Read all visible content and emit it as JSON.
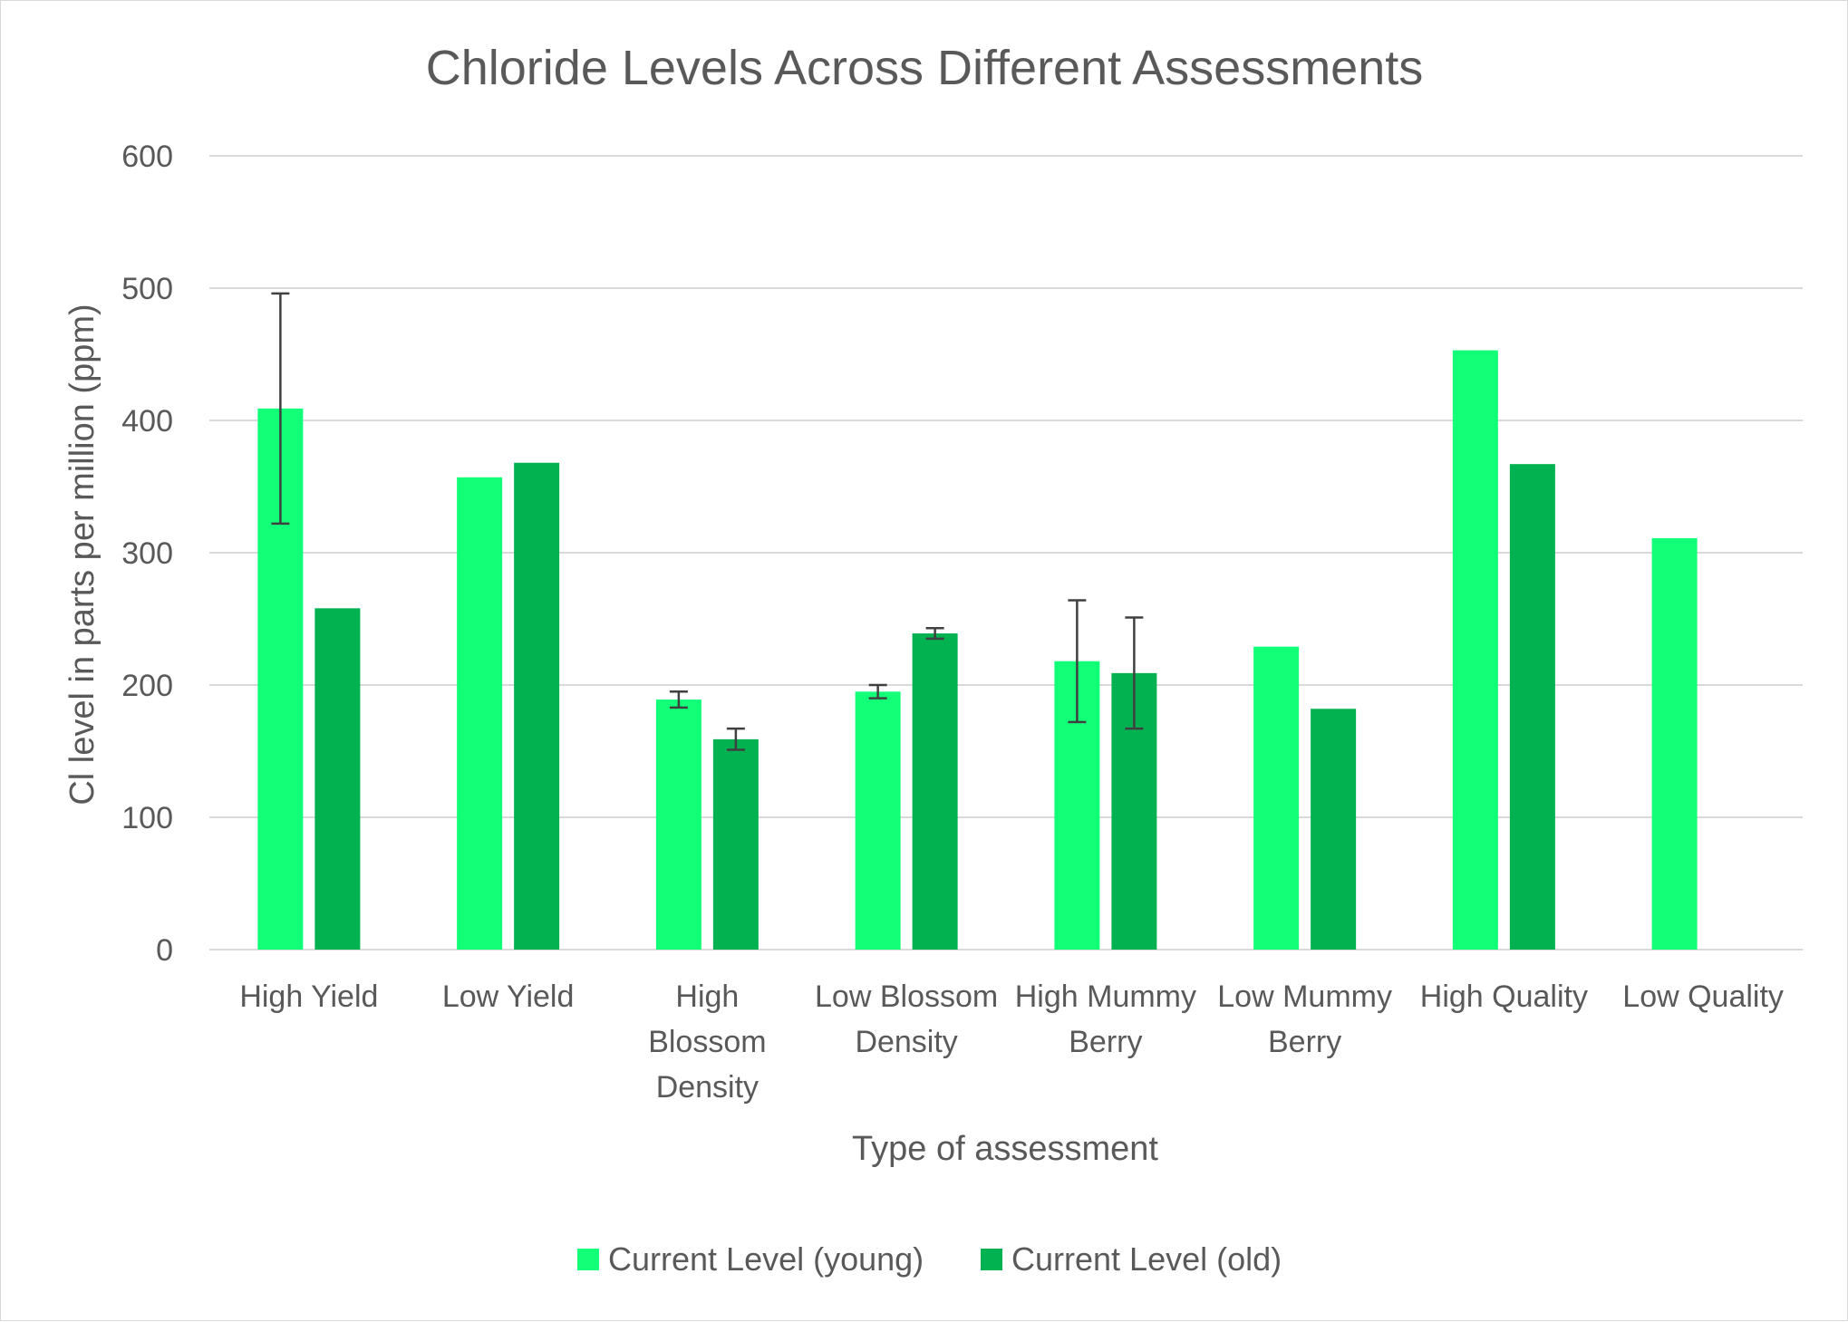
{
  "chart_data": {
    "type": "bar",
    "title": "Chloride Levels Across Different Assessments",
    "xlabel": "Type of assessment",
    "ylabel": "Cl level in parts per million (ppm)",
    "ylim": [
      0,
      600
    ],
    "yticks": [
      0,
      100,
      200,
      300,
      400,
      500,
      600
    ],
    "grid": true,
    "legend_position": "bottom",
    "categories": [
      [
        "High Yield"
      ],
      [
        "Low Yield"
      ],
      [
        "High",
        "Blossom",
        "Density"
      ],
      [
        "Low Blossom",
        "Density"
      ],
      [
        "High Mummy",
        "Berry"
      ],
      [
        "Low Mummy",
        "Berry"
      ],
      [
        "High Quality"
      ],
      [
        "Low Quality"
      ]
    ],
    "series": [
      {
        "name": "Current Level (young)",
        "color": "#12ff78",
        "values": [
          409,
          357,
          189,
          195,
          218,
          229,
          453,
          311
        ],
        "error": [
          87,
          null,
          6,
          5,
          46,
          null,
          null,
          null
        ]
      },
      {
        "name": "Current Level (old)",
        "color": "#02b150",
        "values": [
          258,
          368,
          159,
          239,
          209,
          182,
          367,
          null
        ],
        "error": [
          null,
          null,
          8,
          4,
          42,
          null,
          null,
          null
        ]
      }
    ]
  }
}
